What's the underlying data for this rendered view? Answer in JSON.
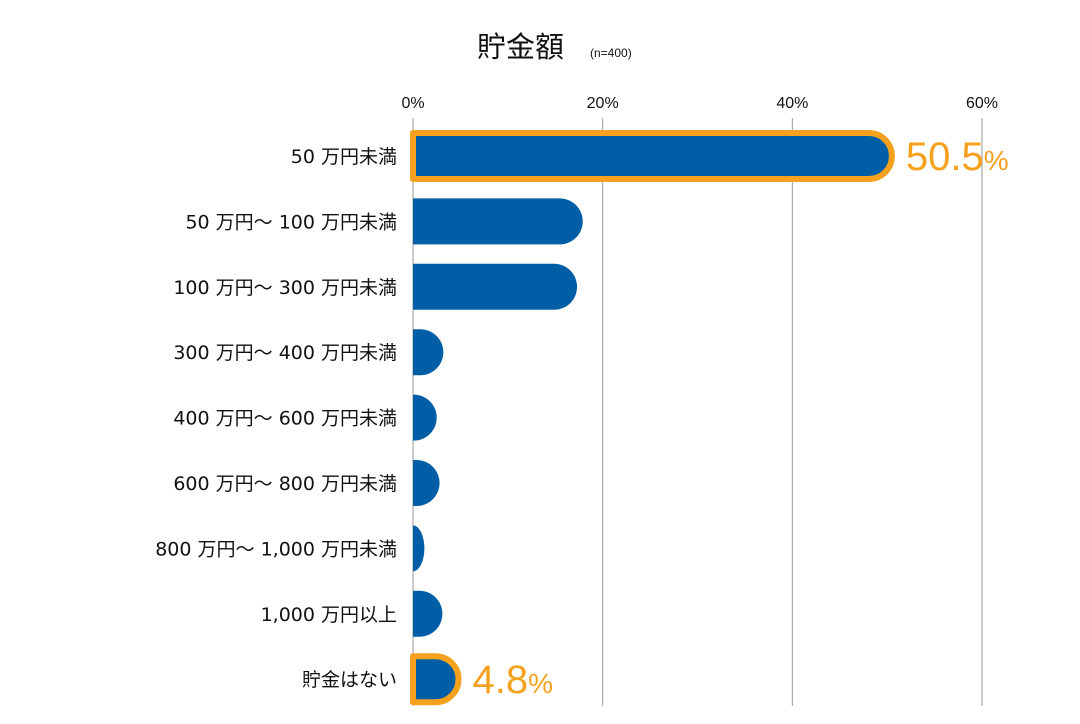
{
  "chart_data": {
    "type": "bar",
    "orientation": "horizontal",
    "title": "貯金額",
    "subtitle": "(n=400)",
    "xlim": [
      0,
      60
    ],
    "x_ticks": [
      "0%",
      "20%",
      "40%",
      "60%"
    ],
    "x_tick_values": [
      0,
      20,
      40,
      60
    ],
    "grid": "vertical",
    "categories": [
      "50 万円未満",
      "50 万円～ 100 万円未満",
      "100 万円～ 300 万円未満",
      "300 万円～ 400 万円未満",
      "400 万円～ 600 万円未満",
      "600 万円～ 800 万円未満",
      "800 万円～ 1,000 万円未満",
      "1,000 万円以上",
      "貯金はない"
    ],
    "values": [
      50.5,
      17.9,
      17.3,
      3.2,
      2.5,
      2.8,
      1.2,
      3.1,
      4.8
    ],
    "highlighted": [
      {
        "index": 0,
        "label_number": "50.5",
        "label_unit": "%"
      },
      {
        "index": 8,
        "label_number": "4.8",
        "label_unit": "%"
      }
    ],
    "colors": {
      "bar": "#005EA6",
      "highlight": "#F6A11E",
      "grid": "#9a9a9a",
      "axis": "#9a9a9a"
    }
  }
}
